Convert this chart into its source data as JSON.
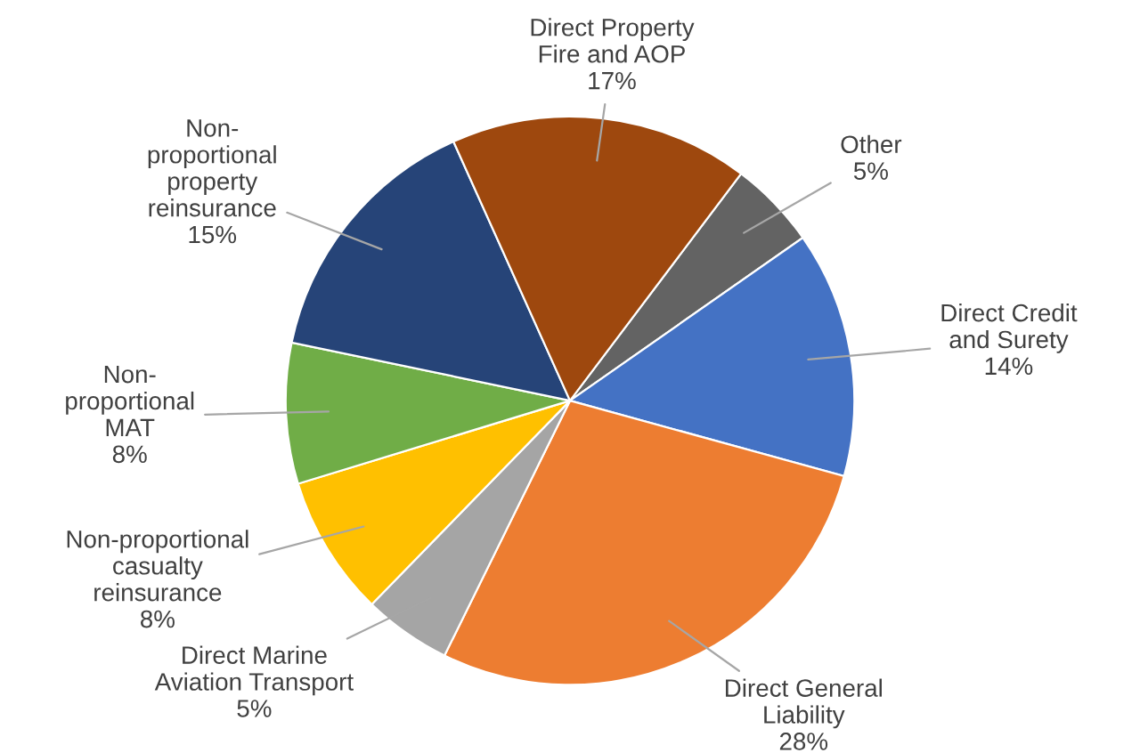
{
  "chart_data": {
    "type": "pie",
    "categories": [
      "Other",
      "Direct Credit\nand Surety",
      "Direct General\nLiability",
      "Direct Marine\nAviation Transport",
      "Non-proportional\ncasualty\nreinsurance",
      "Non-\nproportional\nMAT",
      "Non-\nproportional\nproperty\nreinsurance",
      "Direct Property\nFire and AOP"
    ],
    "values": [
      5,
      14,
      28,
      5,
      8,
      8,
      15,
      17
    ],
    "value_labels": [
      "5%",
      "14%",
      "28%",
      "5%",
      "8%",
      "8%",
      "15%",
      "17%"
    ],
    "colors": [
      "#636363",
      "#4472c4",
      "#ed7d31",
      "#a5a5a5",
      "#ffc000",
      "#70ad47",
      "#264478",
      "#9e480e"
    ],
    "legend": false
  }
}
